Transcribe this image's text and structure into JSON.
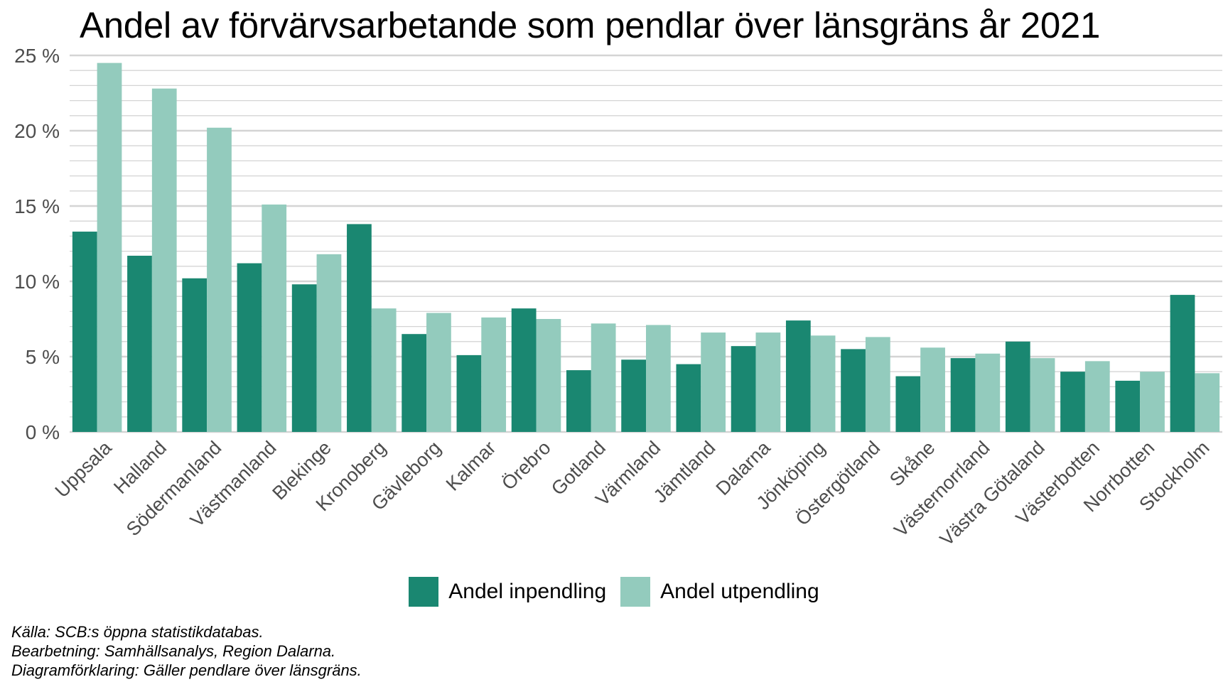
{
  "chart_data": {
    "type": "bar",
    "title": "Andel av förvärvsarbetande som pendlar över länsgräns år 2021",
    "xlabel": "",
    "ylabel": "",
    "ylim": [
      0,
      25
    ],
    "yticks": [
      0,
      5,
      10,
      15,
      20,
      25
    ],
    "ytick_labels": [
      "0 %",
      "5 %",
      "10 %",
      "15 %",
      "20 %",
      "25 %"
    ],
    "grid": true,
    "legend_position": "bottom",
    "categories": [
      "Uppsala",
      "Halland",
      "Södermanland",
      "Västmanland",
      "Blekinge",
      "Kronoberg",
      "Gävleborg",
      "Kalmar",
      "Örebro",
      "Gotland",
      "Värmland",
      "Jämtland",
      "Dalarna",
      "Jönköping",
      "Östergötland",
      "Skåne",
      "Västernorrland",
      "Västra Götaland",
      "Västerbotten",
      "Norrbotten",
      "Stockholm"
    ],
    "series": [
      {
        "name": "Andel inpendling",
        "color": "#1a8771",
        "values": [
          13.3,
          11.7,
          10.2,
          11.2,
          9.8,
          13.8,
          6.5,
          5.1,
          8.2,
          4.1,
          4.8,
          4.5,
          5.7,
          7.4,
          5.5,
          3.7,
          4.9,
          6.0,
          4.0,
          3.4,
          9.1
        ]
      },
      {
        "name": "Andel utpendling",
        "color": "#93cbbd",
        "values": [
          24.5,
          22.8,
          20.2,
          15.1,
          11.8,
          8.2,
          7.9,
          7.6,
          7.5,
          7.2,
          7.1,
          6.6,
          6.6,
          6.4,
          6.3,
          5.6,
          5.2,
          4.9,
          4.7,
          4.0,
          3.9
        ]
      }
    ]
  },
  "footer": {
    "source": "Källa: SCB:s öppna statistikdatabas.",
    "processing": "Bearbetning: Samhällsanalys, Region Dalarna.",
    "note": "Diagramförklaring: Gäller pendlare över länsgräns."
  }
}
